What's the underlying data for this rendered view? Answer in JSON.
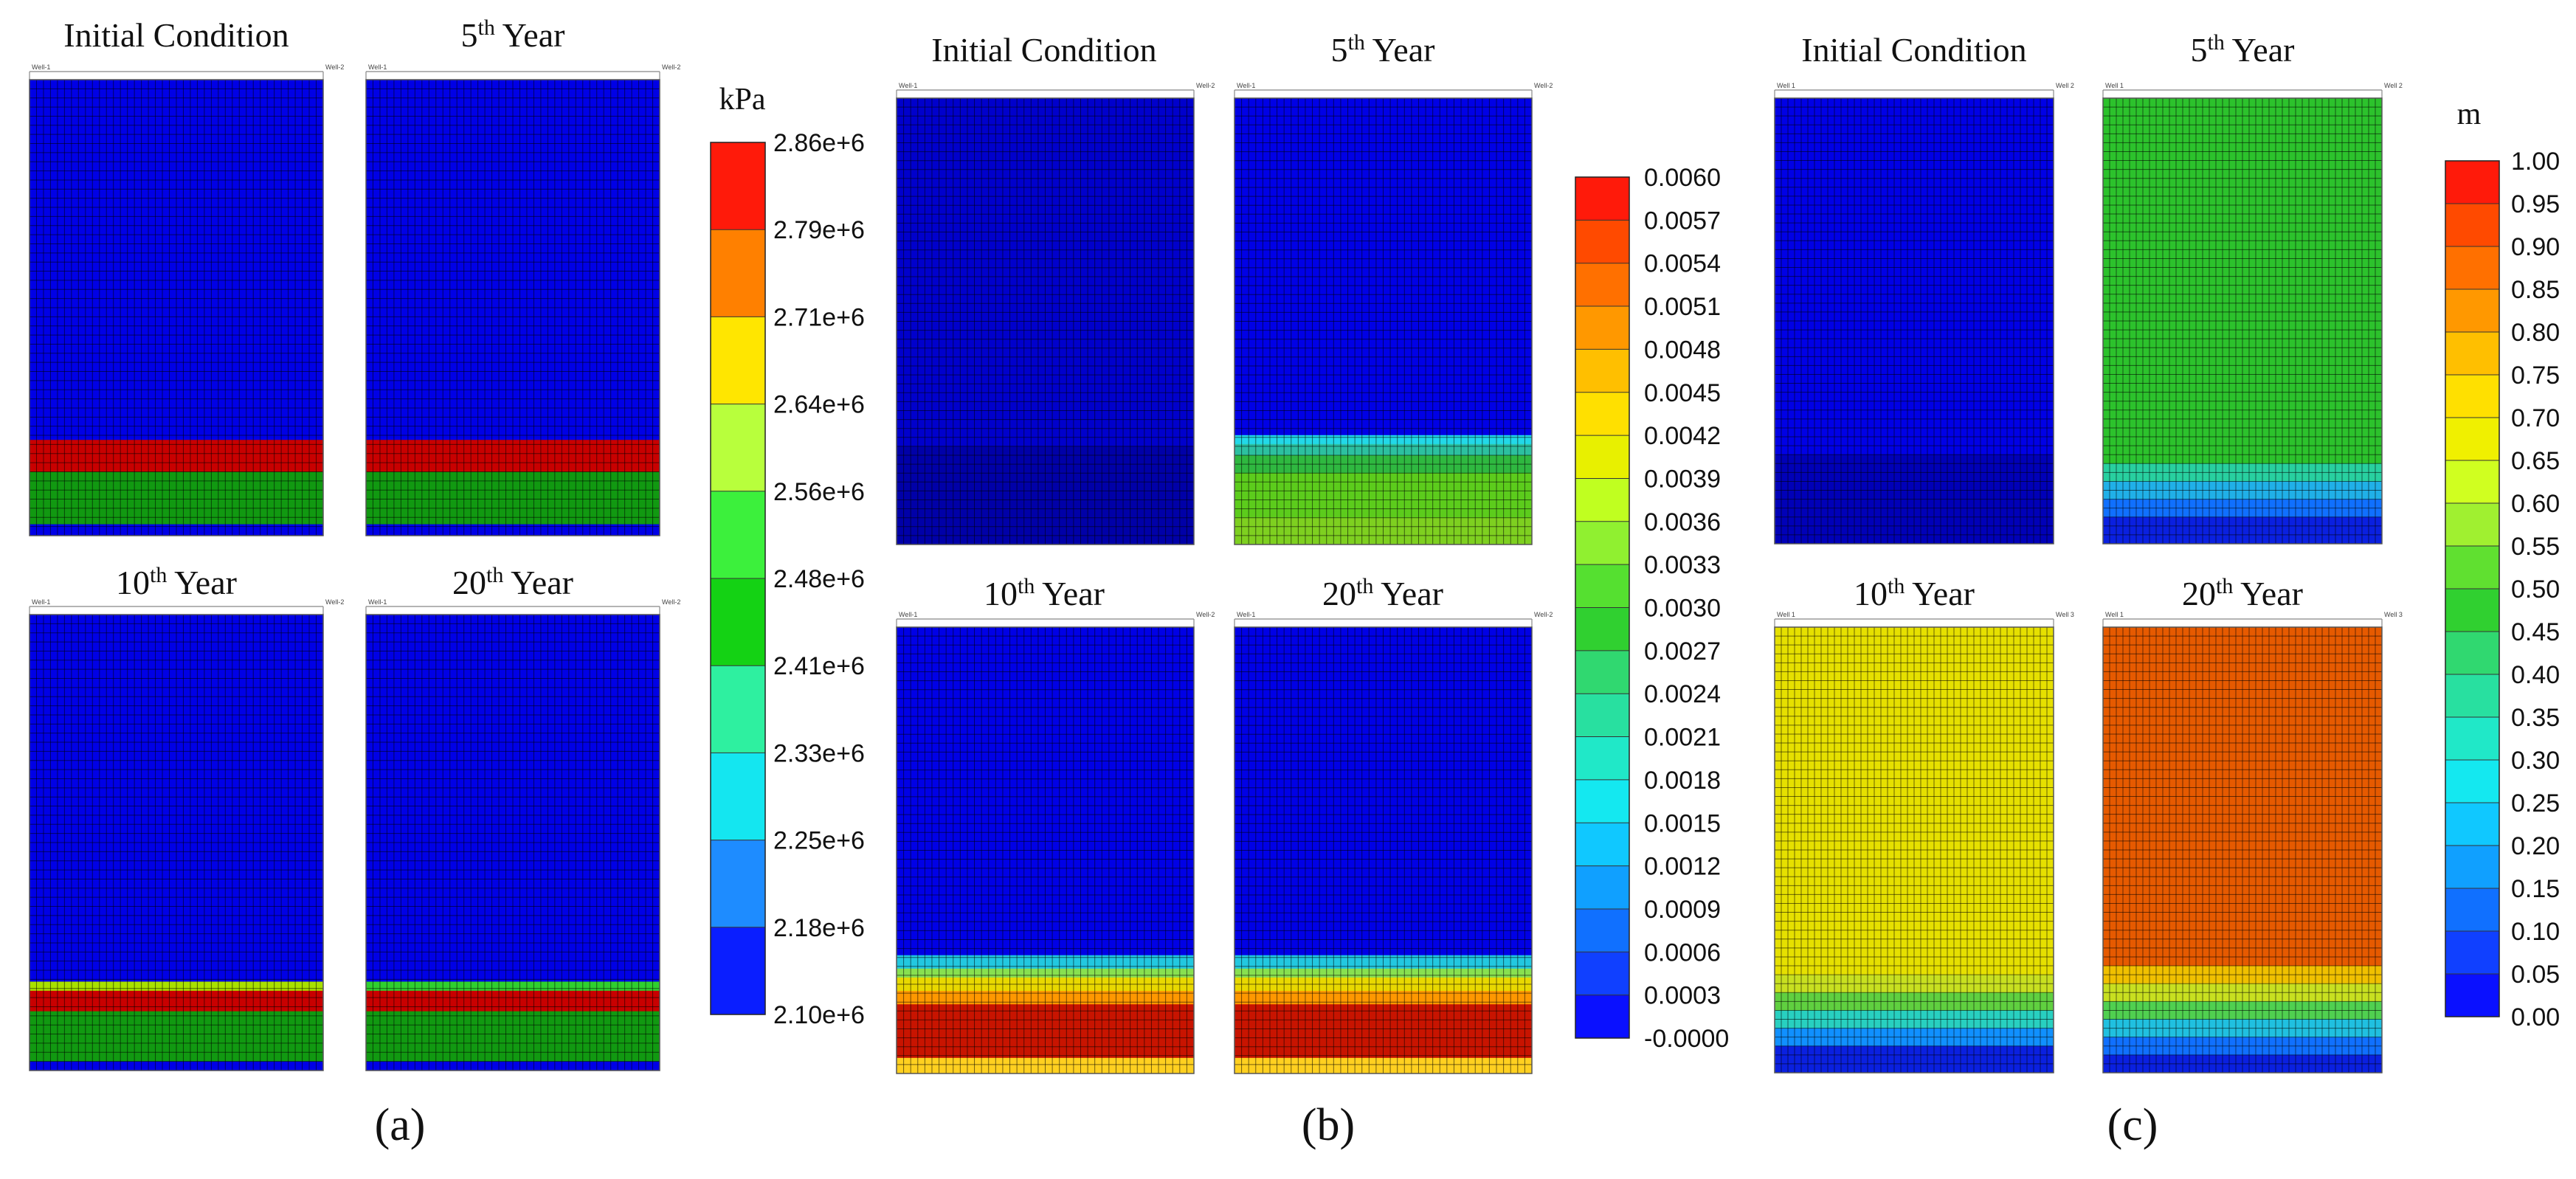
{
  "chart_data": [
    {
      "type": "heatmap",
      "label": "(a)",
      "unit": "kPa",
      "colorbar": {
        "ticks": [
          "2.86e+6",
          "2.79e+6",
          "2.71e+6",
          "2.64e+6",
          "2.56e+6",
          "2.48e+6",
          "2.41e+6",
          "2.33e+6",
          "2.25e+6",
          "2.18e+6",
          "2.10e+6"
        ],
        "colors": [
          "#ff1a0a",
          "#ff8000",
          "#ffe600",
          "#b8ff3c",
          "#3cf03c",
          "#14d214",
          "#2ef0a0",
          "#14e6f0",
          "#1e8cff",
          "#0a1eff"
        ]
      },
      "panels": [
        {
          "title_main": "Initial Condition",
          "title_sup": "",
          "title_rest": "",
          "well_left": "Well-1",
          "well_right": "Well-2",
          "bands": [
            [
              0,
              0.79,
              "#0000e6"
            ],
            [
              0.79,
              0.86,
              "#c80000"
            ],
            [
              0.86,
              0.975,
              "#119911"
            ],
            [
              0.975,
              1,
              "#0000e6"
            ]
          ]
        },
        {
          "title_main": "5",
          "title_sup": "th",
          "title_rest": " Year",
          "well_left": "Well-1",
          "well_right": "Well-2",
          "bands": [
            [
              0,
              0.79,
              "#0000e6"
            ],
            [
              0.79,
              0.86,
              "#c80000"
            ],
            [
              0.86,
              0.975,
              "#119911"
            ],
            [
              0.975,
              1,
              "#0000e6"
            ]
          ]
        },
        {
          "title_main": "10",
          "title_sup": "th",
          "title_rest": " Year",
          "well_left": "Well-1",
          "well_right": "Well-2",
          "bands": [
            [
              0,
              0.805,
              "#0000e6"
            ],
            [
              0.805,
              0.825,
              "#a8e000"
            ],
            [
              0.825,
              0.87,
              "#c80000"
            ],
            [
              0.87,
              0.98,
              "#119911"
            ],
            [
              0.98,
              1,
              "#0000e6"
            ]
          ]
        },
        {
          "title_main": "20",
          "title_sup": "th",
          "title_rest": " Year",
          "well_left": "Well-1",
          "well_right": "Well-2",
          "bands": [
            [
              0,
              0.805,
              "#0000e6"
            ],
            [
              0.805,
              0.825,
              "#2fcf2f"
            ],
            [
              0.825,
              0.87,
              "#c80000"
            ],
            [
              0.87,
              0.98,
              "#119911"
            ],
            [
              0.98,
              1,
              "#0000e6"
            ]
          ]
        }
      ]
    },
    {
      "type": "heatmap",
      "label": "(b)",
      "unit": "",
      "colorbar": {
        "ticks": [
          "0.0060",
          "0.0057",
          "0.0054",
          "0.0051",
          "0.0048",
          "0.0045",
          "0.0042",
          "0.0039",
          "0.0036",
          "0.0033",
          "0.0030",
          "0.0027",
          "0.0024",
          "0.0021",
          "0.0018",
          "0.0015",
          "0.0012",
          "0.0009",
          "0.0006",
          "0.0003",
          "-0.0000"
        ],
        "colors": [
          "#ff1a0a",
          "#ff4a00",
          "#ff7000",
          "#ff9800",
          "#ffbf00",
          "#ffe000",
          "#e8f000",
          "#c0ff20",
          "#90f030",
          "#55e030",
          "#30d030",
          "#30d870",
          "#28e0a0",
          "#20e8c8",
          "#14e8f0",
          "#10c8ff",
          "#10a0ff",
          "#1070ff",
          "#1040ff",
          "#0a10ff"
        ]
      },
      "panels": [
        {
          "title_main": "Initial Condition",
          "title_sup": "",
          "title_rest": "",
          "well_left": "Well-1",
          "well_right": "Well-2",
          "bands": [
            [
              0,
              0.78,
              "#0000cc"
            ],
            [
              0.78,
              1,
              "#0000a8"
            ]
          ]
        },
        {
          "title_main": "5",
          "title_sup": "th",
          "title_rest": " Year",
          "well_left": "Well-1",
          "well_right": "Well-2",
          "bands": [
            [
              0,
              0.755,
              "#0000e6"
            ],
            [
              0.755,
              0.775,
              "#22d8e8"
            ],
            [
              0.775,
              0.8,
              "#2cc0a0"
            ],
            [
              0.8,
              0.84,
              "#2fb840"
            ],
            [
              0.84,
              0.94,
              "#5ccc1c"
            ],
            [
              0.94,
              1,
              "#7ed020"
            ]
          ]
        },
        {
          "title_main": "10",
          "title_sup": "th",
          "title_rest": " Year",
          "well_left": "Well-1",
          "well_right": "Well-2",
          "bands": [
            [
              0,
              0.735,
              "#0000e6"
            ],
            [
              0.735,
              0.765,
              "#22c8e0"
            ],
            [
              0.765,
              0.785,
              "#88e050"
            ],
            [
              0.785,
              0.815,
              "#e8d800"
            ],
            [
              0.815,
              0.845,
              "#ff9800"
            ],
            [
              0.845,
              0.965,
              "#c81400"
            ],
            [
              0.965,
              1,
              "#ffd020"
            ]
          ]
        },
        {
          "title_main": "20",
          "title_sup": "th",
          "title_rest": " Year",
          "well_left": "Well-1",
          "well_right": "Well-2",
          "bands": [
            [
              0,
              0.735,
              "#0000e6"
            ],
            [
              0.735,
              0.765,
              "#22c8e0"
            ],
            [
              0.765,
              0.785,
              "#88e050"
            ],
            [
              0.785,
              0.815,
              "#e8d800"
            ],
            [
              0.815,
              0.845,
              "#ff9800"
            ],
            [
              0.845,
              0.965,
              "#c81400"
            ],
            [
              0.965,
              1,
              "#ffd020"
            ]
          ]
        }
      ]
    },
    {
      "type": "heatmap",
      "label": "(c)",
      "unit": "m",
      "colorbar": {
        "ticks": [
          "1.00",
          "0.95",
          "0.90",
          "0.85",
          "0.80",
          "0.75",
          "0.70",
          "0.65",
          "0.60",
          "0.55",
          "0.50",
          "0.45",
          "0.40",
          "0.35",
          "0.30",
          "0.25",
          "0.20",
          "0.15",
          "0.10",
          "0.05",
          "0.00"
        ],
        "colors": [
          "#ff1a0a",
          "#ff4a00",
          "#ff7000",
          "#ff9800",
          "#ffbf00",
          "#ffe000",
          "#f0f000",
          "#d0ff20",
          "#a0f030",
          "#60e030",
          "#30d030",
          "#30d870",
          "#28e0a0",
          "#20e8c8",
          "#14e8f0",
          "#10c8ff",
          "#10a0ff",
          "#1070ff",
          "#1040ff",
          "#0a10ff"
        ]
      },
      "panels": [
        {
          "title_main": "Initial Condition",
          "title_sup": "",
          "title_rest": "",
          "well_left": "Well 1",
          "well_right": "Well 2",
          "bands": [
            [
              0,
              0.8,
              "#0000e6"
            ],
            [
              0.8,
              1,
              "#0000b8"
            ]
          ]
        },
        {
          "title_main": "5",
          "title_sup": "th",
          "title_rest": " Year",
          "well_left": "Well 1",
          "well_right": "Well 2",
          "bands": [
            [
              0,
              0.82,
              "#2cc22c"
            ],
            [
              0.82,
              0.86,
              "#28d0a0"
            ],
            [
              0.86,
              0.9,
              "#20b0e8"
            ],
            [
              0.9,
              0.94,
              "#1070ff"
            ],
            [
              0.94,
              1,
              "#0a20e0"
            ]
          ]
        },
        {
          "title_main": "10",
          "title_sup": "th",
          "title_rest": " Year",
          "well_left": "Well 1",
          "well_right": "Well 3",
          "bands": [
            [
              0,
              0.78,
              "#e6e000"
            ],
            [
              0.78,
              0.82,
              "#c8e020"
            ],
            [
              0.82,
              0.86,
              "#60d040"
            ],
            [
              0.86,
              0.9,
              "#28d0c0"
            ],
            [
              0.9,
              0.94,
              "#1090ff"
            ],
            [
              0.94,
              1,
              "#0a20e0"
            ]
          ]
        },
        {
          "title_main": "20",
          "title_sup": "th",
          "title_rest": " Year",
          "well_left": "Well 1",
          "well_right": "Well 3",
          "bands": [
            [
              0,
              0.76,
              "#e65a00"
            ],
            [
              0.76,
              0.8,
              "#f0c000"
            ],
            [
              0.8,
              0.84,
              "#c8e020"
            ],
            [
              0.84,
              0.88,
              "#50d050"
            ],
            [
              0.88,
              0.92,
              "#20c0e0"
            ],
            [
              0.92,
              0.96,
              "#1070ff"
            ],
            [
              0.96,
              1,
              "#0a20e0"
            ]
          ]
        }
      ]
    }
  ]
}
